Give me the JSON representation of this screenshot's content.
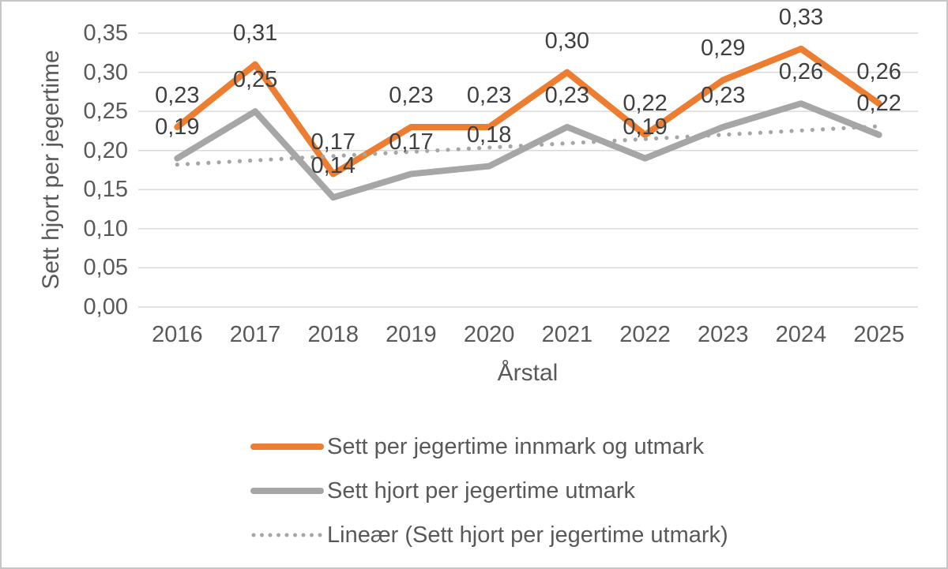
{
  "chart_data": {
    "type": "line",
    "title": "",
    "xlabel": "Årstal",
    "ylabel": "Sett hjort per jegertime",
    "categories": [
      "2016",
      "2017",
      "2018",
      "2019",
      "2020",
      "2021",
      "2022",
      "2023",
      "2024",
      "2025"
    ],
    "series": [
      {
        "name": "Sett per jegertime innmark og utmark",
        "color": "#ED7D31",
        "style": "solid",
        "values": [
          0.23,
          0.31,
          0.17,
          0.23,
          0.23,
          0.3,
          0.22,
          0.29,
          0.33,
          0.26
        ],
        "labels": [
          "0,23",
          "0,31",
          "0,17",
          "0,23",
          "0,23",
          "0,30",
          "0,22",
          "0,29",
          "0,33",
          "0,26"
        ]
      },
      {
        "name": "Sett hjort per jegertime utmark",
        "color": "#A6A6A6",
        "style": "solid",
        "values": [
          0.19,
          0.25,
          0.14,
          0.17,
          0.18,
          0.23,
          0.19,
          0.23,
          0.26,
          0.22
        ],
        "labels": [
          "0,19",
          "0,25",
          "0,14",
          "0,17",
          "0,18",
          "0,23",
          "0,19",
          "0,23",
          "0,26",
          "0,22"
        ]
      },
      {
        "name": "Lineær (Sett hjort per jegertime utmark)",
        "color": "#A6A6A6",
        "style": "dotted",
        "trend": true,
        "start_value": 0.182,
        "end_value": 0.231
      }
    ],
    "ylim": [
      0,
      0.35
    ],
    "ytick_step": 0.05,
    "ytick_labels": [
      "0,00",
      "0,05",
      "0,10",
      "0,15",
      "0,20",
      "0,25",
      "0,30",
      "0,35"
    ],
    "grid": true,
    "gridline_color": "#D9D9D9",
    "legend_position": "bottom",
    "axis_text_color": "#595959",
    "data_label_color": "#404040"
  }
}
